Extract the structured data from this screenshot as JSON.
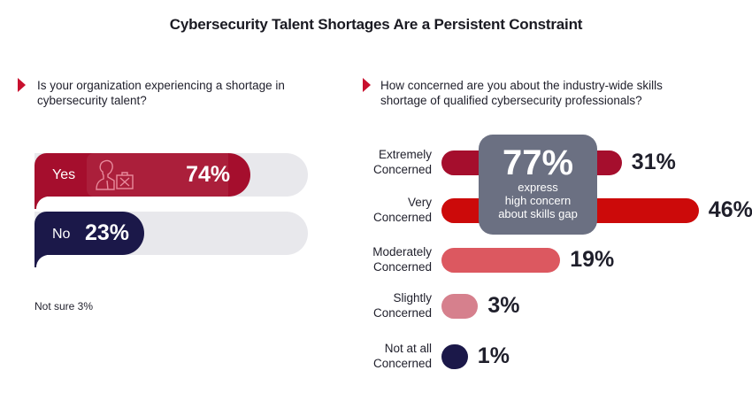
{
  "title": "Cybersecurity Talent Shortages Are a Persistent Constraint",
  "colors": {
    "accent_red": "#c8102e",
    "yes": "#a50e2d",
    "no": "#1b1849",
    "track": "#e8e8ec",
    "callout": "#6b7082",
    "extremely": "#a50e2d",
    "very": "#cc0a0a",
    "moderately": "#dc5860",
    "slightly": "#d6808d",
    "not_at_all": "#1b1849"
  },
  "left": {
    "question": "Is your organization experiencing a shortage in cybersecurity talent?",
    "icon": "person-briefcase-x-icon",
    "footnote": "Not sure 3%"
  },
  "right": {
    "question": "How concerned are you about the industry-wide skills shortage of qualified cybersecurity professionals?",
    "callout": {
      "value": "77%",
      "line1": "express",
      "line2": "high concern",
      "line3": "about skills gap"
    }
  },
  "chart_data": [
    {
      "type": "bar",
      "orientation": "horizontal",
      "title": "Is your organization experiencing a shortage in cybersecurity talent?",
      "categories": [
        "Yes",
        "No"
      ],
      "values": [
        74,
        23
      ],
      "value_labels": [
        "74%",
        "23%"
      ],
      "xlim": [
        0,
        100
      ],
      "annotations": [
        "Not sure 3%"
      ]
    },
    {
      "type": "bar",
      "orientation": "horizontal",
      "title": "How concerned are you about the industry-wide skills shortage of qualified cybersecurity professionals?",
      "categories": [
        [
          "Extremely",
          "Concerned"
        ],
        [
          "Very",
          "Concerned"
        ],
        [
          "Moderately",
          "Concerned"
        ],
        [
          "Slightly",
          "Concerned"
        ],
        [
          "Not at all",
          "Concerned"
        ]
      ],
      "values": [
        31,
        46,
        19,
        3,
        1
      ],
      "value_labels": [
        "31%",
        "46%",
        "19%",
        "3%",
        "1%"
      ],
      "annotations": [
        "77% express high concern about skills gap"
      ]
    }
  ]
}
